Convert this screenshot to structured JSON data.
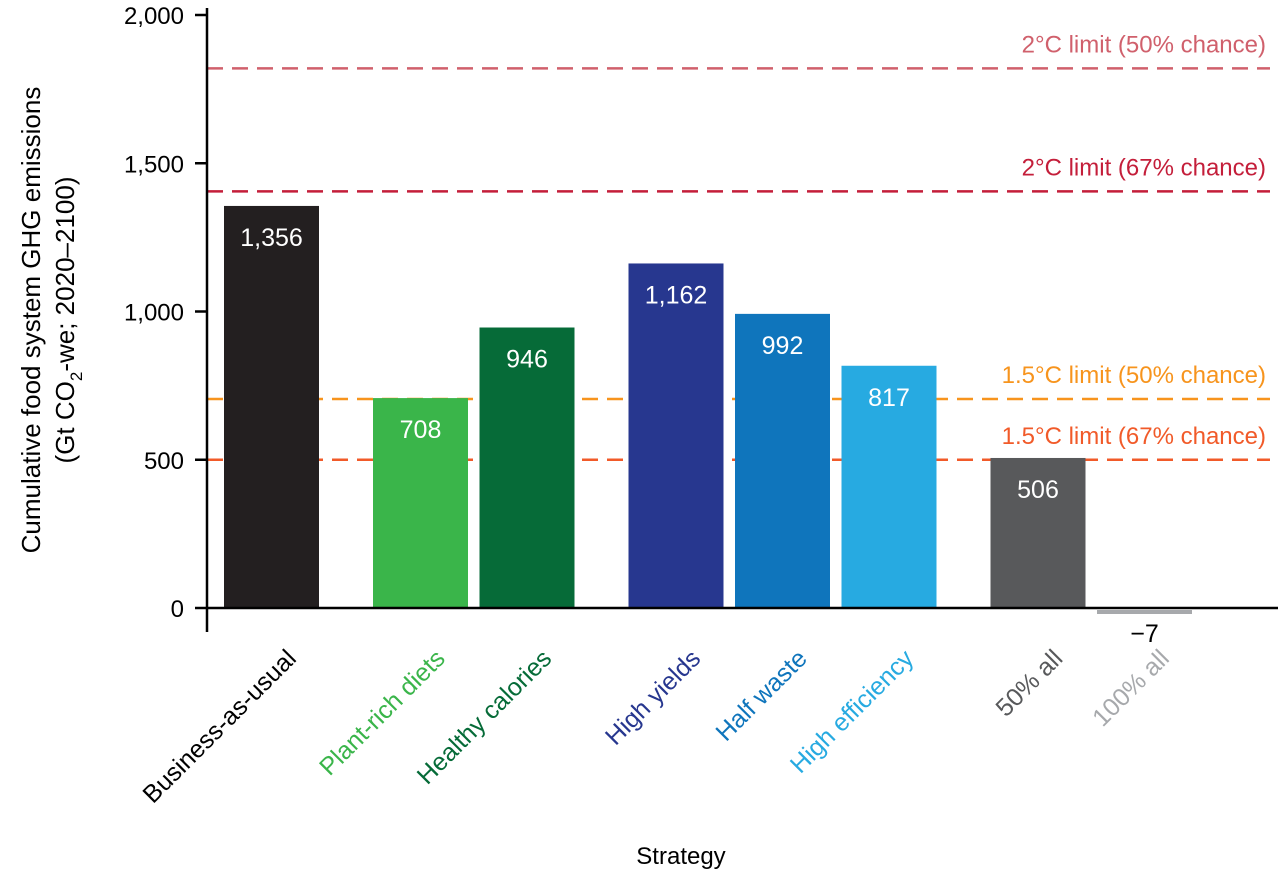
{
  "chart_data": {
    "type": "bar",
    "ylabel_line1": "Cumulative food system GHG emissions",
    "ylabel_line2_pre": "(Gt CO",
    "ylabel_line2_sub": "2",
    "ylabel_line2_post": "-we; 2020–2100)",
    "xlabel": "Strategy",
    "ylim": [
      -80,
      2000
    ],
    "yticks": [
      0,
      500,
      1000,
      1500,
      2000
    ],
    "ytick_labels": [
      "0",
      "500",
      "1,000",
      "1,500",
      "2,000"
    ],
    "categories": [
      {
        "label": "Business-as-usual",
        "value": 1356,
        "value_label": "1,356",
        "color": "#231f20",
        "label_color": "#000000",
        "group": 0
      },
      {
        "label": "Plant-rich diets",
        "value": 708,
        "value_label": "708",
        "color": "#3ab54a",
        "label_color": "#3ab54a",
        "group": 1
      },
      {
        "label": "Healthy calories",
        "value": 946,
        "value_label": "946",
        "color": "#066b38",
        "label_color": "#066b38",
        "group": 1
      },
      {
        "label": "High yields",
        "value": 1162,
        "value_label": "1,162",
        "color": "#27378f",
        "label_color": "#27378f",
        "group": 2
      },
      {
        "label": "Half waste",
        "value": 992,
        "value_label": "992",
        "color": "#0f75bc",
        "label_color": "#0f75bc",
        "group": 2
      },
      {
        "label": "High efficiency",
        "value": 817,
        "value_label": "817",
        "color": "#27aae1",
        "label_color": "#27aae1",
        "group": 2
      },
      {
        "label": "50% all",
        "value": 506,
        "value_label": "506",
        "color": "#58595b",
        "label_color": "#58595b",
        "group": 3
      },
      {
        "label": "100% all",
        "value": -7,
        "value_label": "−7",
        "color": "#a7a9ac",
        "label_color": "#a7a9ac",
        "group": 3
      }
    ],
    "reference_lines": [
      {
        "value": 1820,
        "label": "2°C limit (50% chance)",
        "color": "#d0606c"
      },
      {
        "value": 1405,
        "label": "2°C limit (67% chance)",
        "color": "#c41e3a"
      },
      {
        "value": 705,
        "label": "1.5°C limit (50% chance)",
        "color": "#f7941d"
      },
      {
        "value": 500,
        "label": "1.5°C limit (67% chance)",
        "color": "#f15a29"
      }
    ],
    "grid": false,
    "legend": "none"
  }
}
